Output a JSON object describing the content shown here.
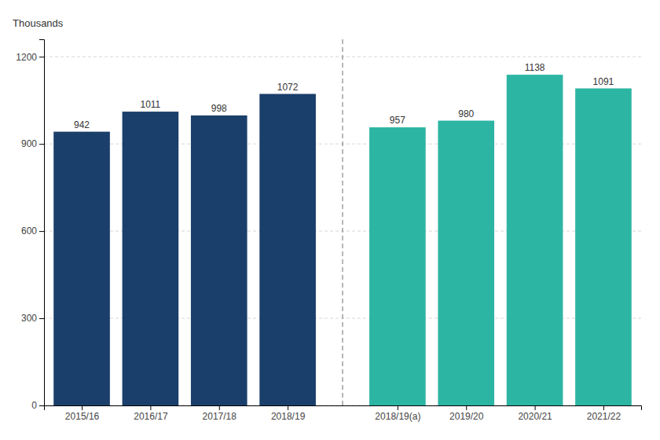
{
  "chart_data": {
    "type": "bar",
    "ylabel": "Thousands",
    "categories": [
      "2015/16",
      "2016/17",
      "2017/18",
      "2018/19",
      "2018/19(a)",
      "2019/20",
      "2020/21",
      "2021/22"
    ],
    "values": [
      942,
      1011,
      998,
      1072,
      957,
      980,
      1138,
      1091
    ],
    "colors": [
      "#1b3f6b",
      "#1b3f6b",
      "#1b3f6b",
      "#1b3f6b",
      "#2db5a3",
      "#2db5a3",
      "#2db5a3",
      "#2db5a3"
    ],
    "ylim": [
      0,
      1260
    ],
    "yticks": [
      0,
      300,
      600,
      900,
      1200
    ],
    "grid": true,
    "data_labels": true
  }
}
